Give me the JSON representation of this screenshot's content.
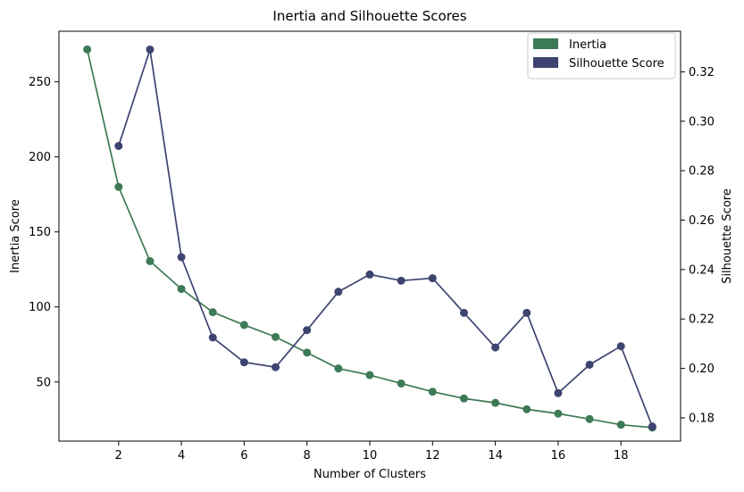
{
  "chart_data": {
    "type": "line",
    "title": "Inertia and Silhouette Scores",
    "xlabel": "Number of Clusters",
    "ylabel_left": "Inertia Score",
    "ylabel_right": "Silhouette Score",
    "xlim": [
      0.1,
      19.9
    ],
    "x_ticks": [
      2,
      4,
      6,
      8,
      10,
      12,
      14,
      16,
      18
    ],
    "left_axis": {
      "ylim": [
        10.6,
        283.7
      ],
      "ticks": [
        50,
        100,
        150,
        200,
        250
      ]
    },
    "right_axis": {
      "ylim": [
        0.1706,
        0.3364
      ],
      "ticks": [
        0.18,
        0.2,
        0.22,
        0.24,
        0.26,
        0.28,
        0.3,
        0.32
      ],
      "tick_labels": [
        "0.18",
        "0.20",
        "0.22",
        "0.24",
        "0.26",
        "0.28",
        "0.30",
        "0.32"
      ]
    },
    "grid": false,
    "legend": {
      "position": "top-right"
    },
    "series": [
      {
        "name": "Inertia",
        "axis": "left",
        "color": "#3d7a56",
        "x": [
          1,
          2,
          3,
          4,
          5,
          6,
          7,
          8,
          9,
          10,
          11,
          12,
          13,
          14,
          15,
          16,
          17,
          18,
          19
        ],
        "values": [
          271.6,
          180,
          130.5,
          112,
          96.5,
          88,
          80,
          69.6,
          59,
          54.6,
          49,
          43.5,
          39,
          36.1,
          31.8,
          28.9,
          25.3,
          21.5,
          19.6
        ]
      },
      {
        "name": "Silhouette Score",
        "axis": "right",
        "color": "#3d4470",
        "x": [
          2,
          3,
          4,
          5,
          6,
          7,
          8,
          9,
          10,
          11,
          12,
          13,
          14,
          15,
          16,
          17,
          18,
          19
        ],
        "values": [
          0.29,
          0.329,
          0.245,
          0.2125,
          0.2025,
          0.2005,
          0.2155,
          0.231,
          0.238,
          0.2355,
          0.2365,
          0.2225,
          0.2085,
          0.2225,
          0.19,
          0.2015,
          0.209,
          0.1765
        ]
      }
    ]
  }
}
